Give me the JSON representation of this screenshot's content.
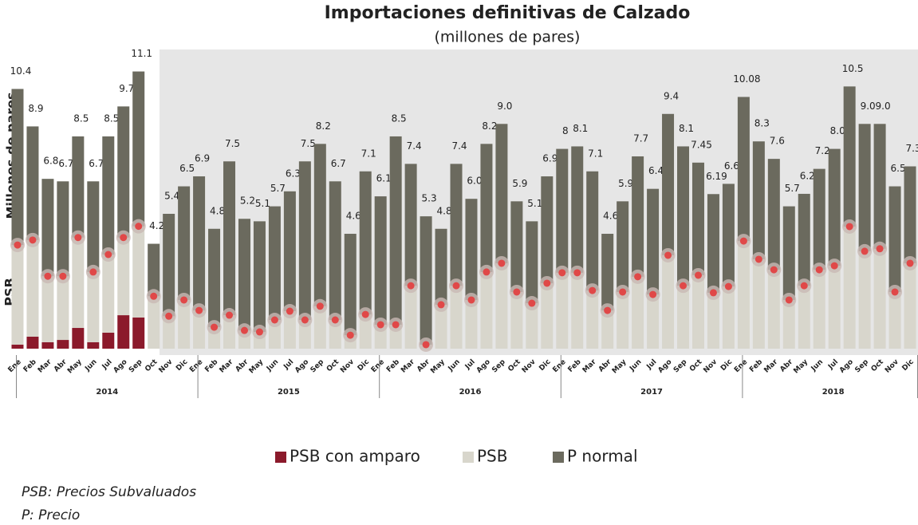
{
  "chart_data": {
    "type": "stacked_bar",
    "title": "Importaciones definitivas de Calzado",
    "subtitle": "(millones de pares)",
    "y_label": "Millones de pares",
    "y_label_2": "PSB",
    "categories": [
      "Ene",
      "Feb",
      "Mar",
      "Abr",
      "May",
      "Jun",
      "Jul",
      "Ago",
      "Sep",
      "Oct",
      "Nov",
      "Dic",
      "Ene",
      "Feb",
      "Mar",
      "Abr",
      "May",
      "Jun",
      "Jul",
      "Ago",
      "Sep",
      "Oct",
      "Nov",
      "Dic",
      "Ene",
      "Feb",
      "Mar",
      "Abr",
      "May",
      "Jun",
      "Jul",
      "Ago",
      "Sep",
      "Oct",
      "Nov",
      "Dic",
      "Ene",
      "Feb",
      "Mar",
      "Abr",
      "May",
      "Jun",
      "Jul",
      "Ago",
      "Sep",
      "Oct",
      "Nov",
      "Dic",
      "Ene",
      "Feb",
      "Mar",
      "Abr",
      "May",
      "Jun",
      "Jul",
      "Ago",
      "Sep",
      "Oct",
      "Nov",
      "Dic"
    ],
    "groups": [
      "2014",
      "2015",
      "2016",
      "2017",
      "2018"
    ],
    "ylim": [
      0,
      11.5
    ],
    "series": [
      {
        "name": "PSB con amparo",
        "color": "#8b1a2b",
        "values": [
          0.16,
          0.48,
          0.26,
          0.35,
          0.83,
          0.26,
          0.64,
          1.34,
          1.25,
          null,
          null,
          null,
          null,
          null,
          null,
          null,
          null,
          null,
          null,
          null,
          null,
          null,
          null,
          null,
          null,
          null,
          null,
          null,
          null,
          null,
          null,
          null,
          null,
          null,
          null,
          null,
          null,
          null,
          null,
          null,
          null,
          null,
          null,
          null,
          null,
          null,
          null,
          null,
          null,
          null,
          null,
          null,
          null,
          null,
          null,
          null,
          null,
          null,
          null,
          null
        ]
      },
      {
        "name": "PSB",
        "color": "#d8d6cc",
        "values": [
          3.99,
          3.87,
          2.64,
          2.55,
          3.62,
          2.81,
          3.13,
          3.11,
          3.65,
          2.1,
          1.3,
          1.95,
          1.53,
          0.86,
          1.34,
          0.73,
          0.67,
          1.15,
          1.5,
          1.15,
          1.7,
          1.15,
          0.54,
          1.37,
          0.96,
          0.96,
          2.52,
          0.16,
          1.76,
          2.52,
          1.95,
          3.07,
          3.42,
          2.27,
          1.82,
          2.62,
          3.04,
          3.04,
          2.33,
          1.53,
          2.27,
          2.88,
          2.17,
          3.74,
          2.52,
          2.94,
          2.24,
          2.49,
          4.31,
          3.58,
          3.16,
          1.95,
          2.52,
          3.16,
          3.32,
          4.89,
          3.9,
          4.0,
          2.27,
          3.42
        ]
      },
      {
        "name": "P normal",
        "color": "#6b6a5e",
        "values": [
          6.25,
          4.55,
          3.9,
          3.8,
          4.05,
          3.63,
          4.73,
          5.25,
          6.2,
          2.1,
          4.1,
          4.55,
          5.37,
          3.94,
          6.16,
          4.47,
          4.43,
          4.55,
          4.8,
          6.35,
          6.5,
          5.55,
          4.06,
          5.73,
          5.14,
          7.54,
          4.88,
          5.14,
          3.04,
          4.88,
          4.05,
          5.13,
          5.58,
          3.63,
          3.28,
          4.28,
          4.96,
          5.06,
          4.77,
          3.07,
          3.63,
          4.82,
          4.23,
          5.66,
          5.58,
          4.51,
          3.95,
          4.11,
          5.77,
          4.72,
          4.44,
          3.75,
          3.68,
          4.04,
          4.68,
          5.61,
          5.1,
          5.0,
          4.23,
          3.88
        ]
      }
    ],
    "totals": {
      "values": [
        10.4,
        8.9,
        6.8,
        6.7,
        8.5,
        6.7,
        8.5,
        9.7,
        11.1,
        4.2,
        5.4,
        6.5,
        6.9,
        4.8,
        7.5,
        5.2,
        5.1,
        5.7,
        6.3,
        7.5,
        8.2,
        6.7,
        4.6,
        7.1,
        6.1,
        8.5,
        7.4,
        5.3,
        4.8,
        7.4,
        6.0,
        8.2,
        9.0,
        5.9,
        5.1,
        6.9,
        8,
        8.1,
        7.1,
        4.6,
        5.9,
        7.7,
        6.4,
        9.4,
        8.1,
        7.45,
        6.19,
        6.6,
        10.08,
        8.3,
        7.6,
        5.7,
        6.2,
        7.2,
        8.0,
        10.5,
        9.0,
        9.0,
        6.5,
        7.3
      ],
      "value_labels": [
        "10.4",
        "8.9",
        "6.8",
        "6.7",
        "8.5",
        "6.7",
        "8.5",
        "9.7",
        "11.1",
        "4.2",
        "5.4",
        "6.5",
        "6.9",
        "4.8",
        "7.5",
        "5.2",
        "5.1",
        "5.7",
        "6.3",
        "7.5",
        "8.2",
        "6.7",
        "4.6",
        "7.1",
        "6.1",
        "8.5",
        "7.4",
        "5.3",
        "4.8",
        "7.4",
        "6.0",
        "8.2",
        "9.0",
        "5.9",
        "5.1",
        "6.9",
        "8",
        "8.1",
        "7.1",
        "4.6",
        "5.9",
        "7.7",
        "6.4",
        "9.4",
        "8.1",
        "7.45",
        "6.19",
        "6.6",
        "10.08",
        "8.3",
        "7.6",
        "5.7",
        "6.2",
        "7.2",
        "8.0",
        "10.5",
        "9.0",
        "9.0",
        "6.5",
        "7.3"
      ]
    },
    "marker_color": "#e04848",
    "legend": "bottom",
    "notes": [
      "PSB: Precios Subvaluados",
      "P: Precio"
    ]
  }
}
